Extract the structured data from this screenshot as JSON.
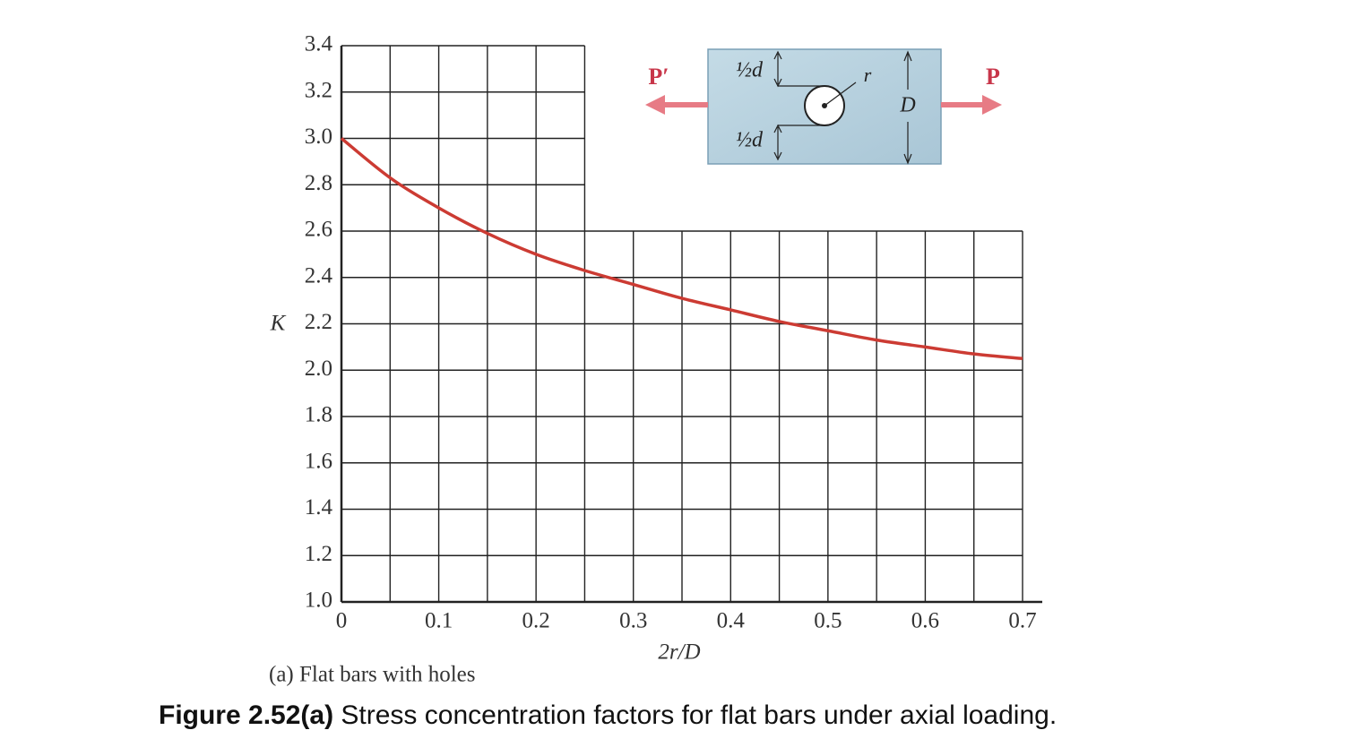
{
  "chart_data": {
    "type": "line",
    "x": [
      0,
      0.05,
      0.1,
      0.15,
      0.2,
      0.25,
      0.3,
      0.35,
      0.4,
      0.45,
      0.5,
      0.55,
      0.6,
      0.65,
      0.7
    ],
    "series": [
      {
        "name": "K",
        "color": "#cc3b33",
        "values": [
          3.0,
          2.83,
          2.7,
          2.59,
          2.5,
          2.43,
          2.37,
          2.31,
          2.26,
          2.21,
          2.17,
          2.13,
          2.1,
          2.07,
          2.05
        ]
      }
    ],
    "xlim": [
      0,
      0.7
    ],
    "ylim": [
      1.0,
      3.4
    ],
    "xticks": [
      0,
      0.1,
      0.2,
      0.3,
      0.4,
      0.5,
      0.6,
      0.7
    ],
    "xgrid": [
      0,
      0.05,
      0.1,
      0.15,
      0.2,
      0.25,
      0.3,
      0.35,
      0.4,
      0.45,
      0.5,
      0.55,
      0.6,
      0.65,
      0.7
    ],
    "yticks": [
      {
        "value": 1.0,
        "label": "1.0"
      },
      1.2,
      1.4,
      1.6,
      1.8,
      {
        "value": 2.0,
        "label": "2.0"
      },
      2.2,
      2.4,
      2.6,
      2.8,
      {
        "value": 3.0,
        "label": "3.0"
      },
      3.2,
      3.4
    ],
    "grid": true,
    "grid_notch": {
      "x": 0.25,
      "y": 2.6
    },
    "ylabel": "K",
    "xlabel": "2r/D",
    "caption": "(a) Flat bars with holes",
    "inset": {
      "load_left": "P′",
      "load_right": "P",
      "upper": "½d",
      "lower": "½d",
      "radius": "r",
      "width": "D"
    }
  },
  "figure": {
    "label": "Figure 2.52(a)",
    "text": "Stress concentration factors for flat bars under axial loading."
  }
}
